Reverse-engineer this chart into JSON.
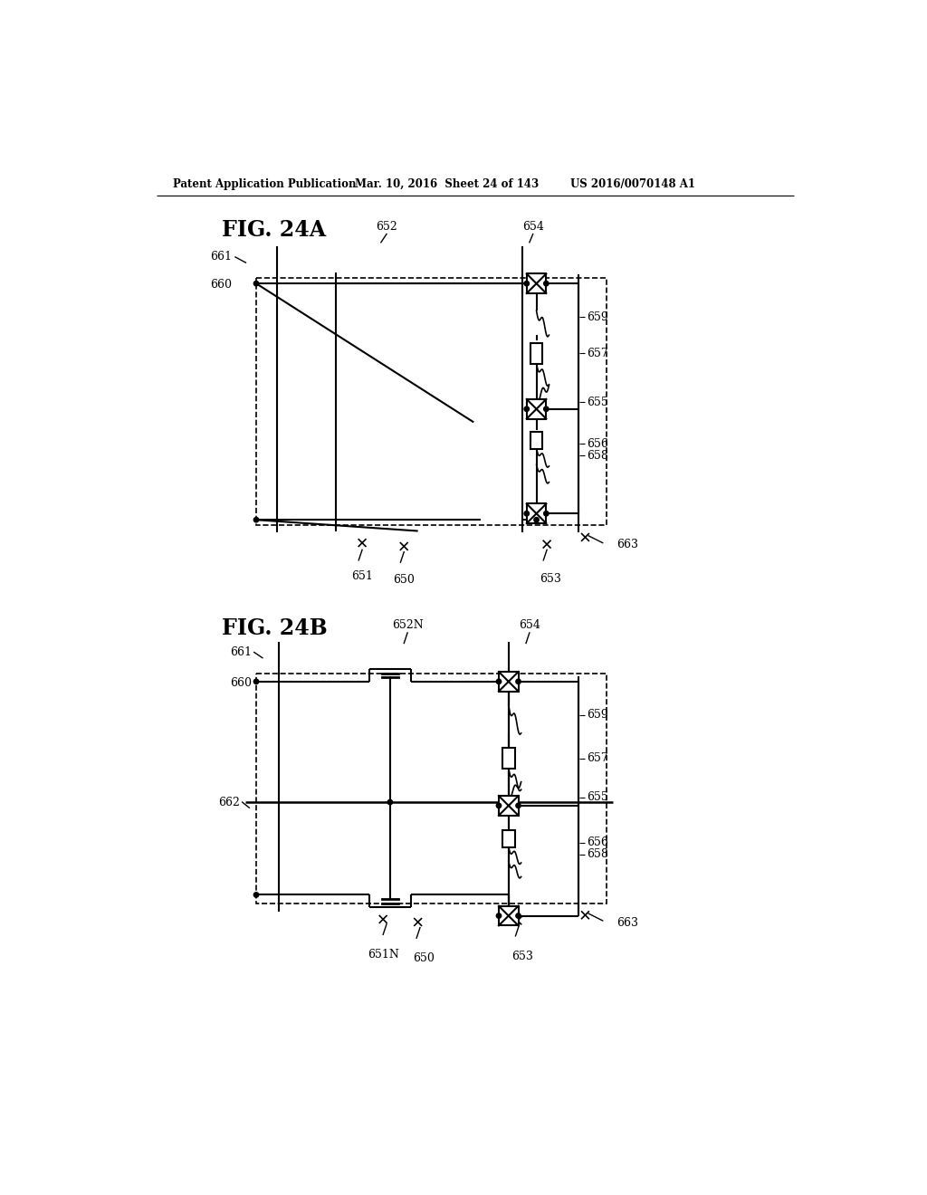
{
  "title_line1": "Patent Application Publication",
  "title_line2": "Mar. 10, 2016  Sheet 24 of 143",
  "title_line3": "US 2016/0070148 A1",
  "fig_label_A": "FIG. 24A",
  "fig_label_B": "FIG. 24B",
  "background_color": "#ffffff"
}
